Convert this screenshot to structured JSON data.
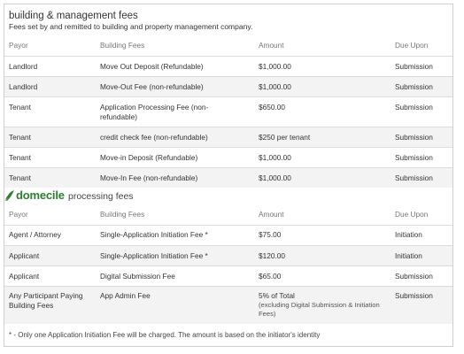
{
  "header": {
    "title": "building & management fees",
    "subtitle": "Fees set by and remitted to building and property management company."
  },
  "columns": {
    "payor": "Payor",
    "fees": "Building Fees",
    "amount": "Amount",
    "due": "Due Upon"
  },
  "building_fees": [
    {
      "payor": "Landlord",
      "fee": "Move Out Deposit (Refundable)",
      "amount": "$1,000.00",
      "due": "Submission"
    },
    {
      "payor": "Landlord",
      "fee": "Move-Out Fee (non-refundable)",
      "amount": "$1,000.00",
      "due": "Submission"
    },
    {
      "payor": "Tenant",
      "fee": "Application Processing Fee (non-refundable)",
      "amount": "$650.00",
      "due": "Submission"
    },
    {
      "payor": "Tenant",
      "fee": "credit check fee (non-refundable)",
      "amount": "$250 per tenant",
      "due": "Submission"
    },
    {
      "payor": "Tenant",
      "fee": "Move-in Deposit (Refundable)",
      "amount": "$1,000.00",
      "due": "Submission"
    },
    {
      "payor": "Tenant",
      "fee": "Move-In Fee (non-refundable)",
      "amount": "$1,000.00",
      "due": "Submission"
    }
  ],
  "brand": {
    "logo_text": "domecile",
    "section_title": "processing fees",
    "logo_color": "#2e7d32"
  },
  "processing_fees": [
    {
      "payor": "Agent / Attorney",
      "fee": "Single-Application Initiation Fee *",
      "amount": "$75.00",
      "amount_note": "",
      "due": "Initiation"
    },
    {
      "payor": "Applicant",
      "fee": "Single-Application Initiation Fee *",
      "amount": "$120.00",
      "amount_note": "",
      "due": "Initiation"
    },
    {
      "payor": "Applicant",
      "fee": "Digital Submission Fee",
      "amount": "$65.00",
      "amount_note": "",
      "due": "Submission"
    },
    {
      "payor": "Any Participant Paying Building Fees",
      "fee": "App Admin Fee",
      "amount": "5% of Total",
      "amount_note": "(excluding Digital Submission & Initiation Fees)",
      "due": "Submission"
    }
  ],
  "footnote": "* - Only one Application Initiation Fee will be charged. The amount is based on the initiator's identity"
}
